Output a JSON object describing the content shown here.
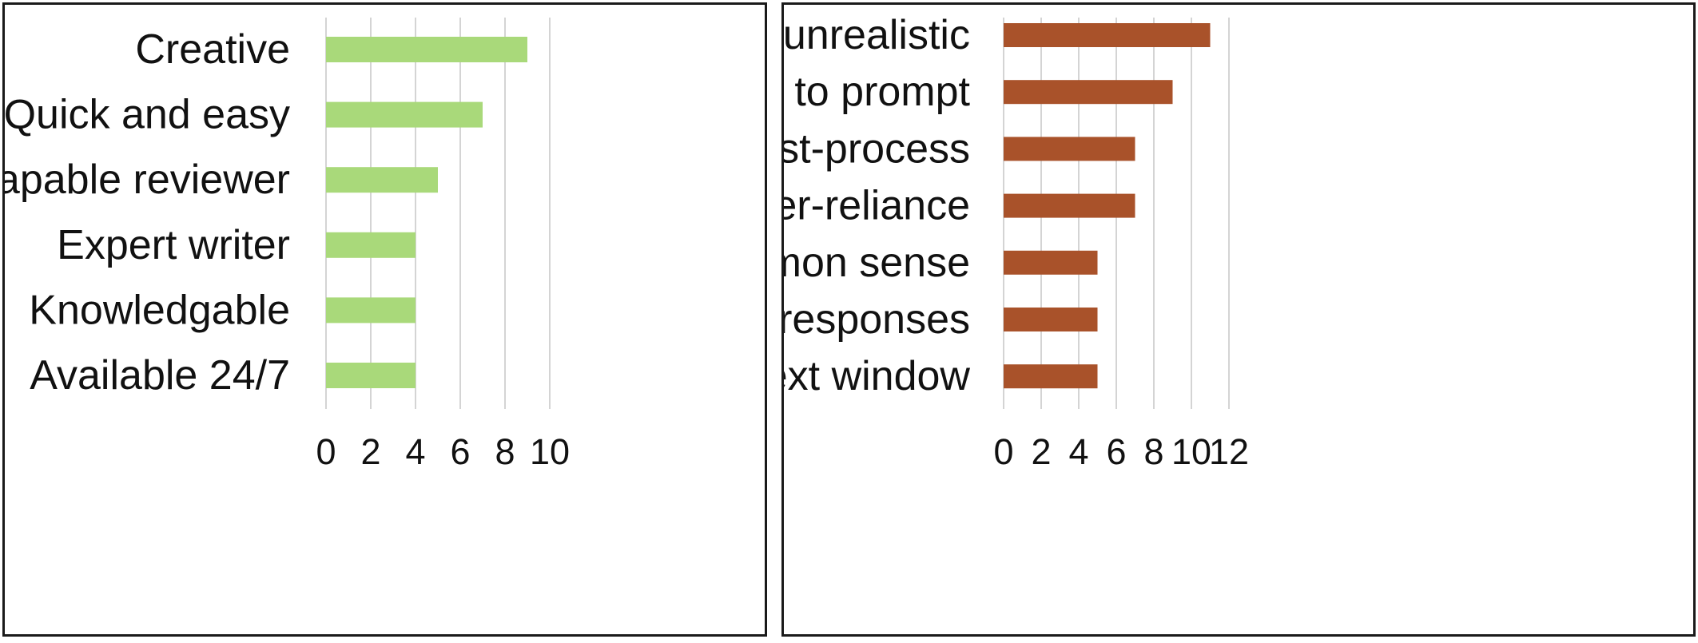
{
  "chart_data": [
    {
      "type": "bar",
      "orientation": "horizontal",
      "categories": [
        "Creative",
        "Quick and easy",
        "Capable reviewer",
        "Expert writer",
        "Knowledgable",
        "Available 24/7"
      ],
      "values": [
        9,
        7,
        5,
        4,
        4,
        4
      ],
      "xlim": [
        0,
        10
      ],
      "ticks": [
        "0",
        "2",
        "4",
        "6",
        "8",
        "10"
      ],
      "grid": true,
      "color": "#a9d97a"
    },
    {
      "type": "bar",
      "orientation": "horizontal",
      "categories": [
        "Generic and unrealistic",
        "Tedious to prompt",
        "Tedious to post-process",
        "Leads to over-reliance",
        "Lacks common sense",
        "Bad at long responses",
        "Limited context window"
      ],
      "values": [
        11,
        9,
        7,
        7,
        5,
        5,
        5
      ],
      "xlim": [
        0,
        12
      ],
      "ticks": [
        "0",
        "2",
        "4",
        "6",
        "8",
        "10",
        "12"
      ],
      "grid": true,
      "color": "#a9522a"
    }
  ]
}
